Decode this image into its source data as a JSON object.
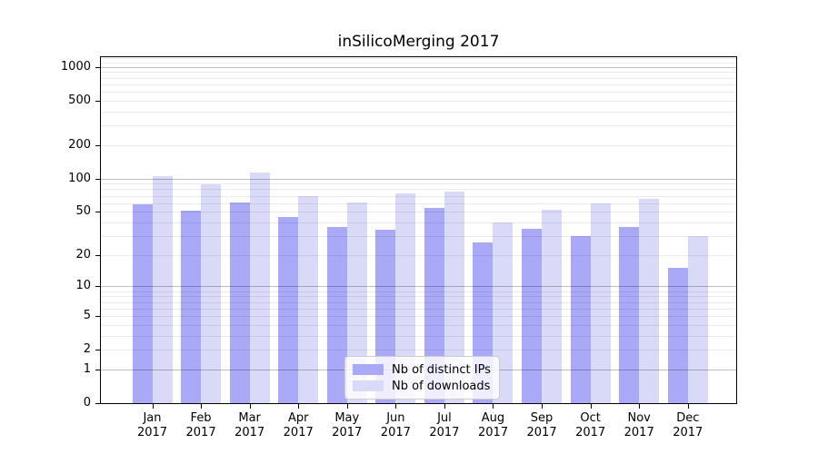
{
  "title": "inSilicoMerging 2017",
  "legend": {
    "ips_label": "Nb of distinct IPs",
    "downloads_label": "Nb of downloads"
  },
  "chart_data": {
    "type": "bar",
    "title": "inSilicoMerging 2017",
    "scale": "log1p",
    "categories": [
      "Jan 2017",
      "Feb 2017",
      "Mar 2017",
      "Apr 2017",
      "May 2017",
      "Jun 2017",
      "Jul 2017",
      "Aug 2017",
      "Sep 2017",
      "Oct 2017",
      "Nov 2017",
      "Dec 2017"
    ],
    "series": [
      {
        "name": "Nb of distinct IPs",
        "color": "#a9a9f8",
        "values": [
          58,
          51,
          61,
          45,
          36,
          34,
          54,
          26,
          35,
          30,
          36,
          15
        ]
      },
      {
        "name": "Nb of downloads",
        "color": "#d9d9f8",
        "values": [
          106,
          88,
          113,
          70,
          61,
          73,
          77,
          40,
          52,
          60,
          65,
          30
        ]
      }
    ],
    "yticks": [
      0,
      1,
      2,
      5,
      10,
      20,
      50,
      100,
      200,
      500,
      1000
    ],
    "major_gridlines": [
      1,
      10,
      100,
      1000
    ],
    "ylim": [
      0,
      1245
    ],
    "xlabel": "",
    "ylabel": "",
    "grid": "both",
    "legend_position": "lower center",
    "background": "#ffffff",
    "axis_color": "#000000"
  }
}
